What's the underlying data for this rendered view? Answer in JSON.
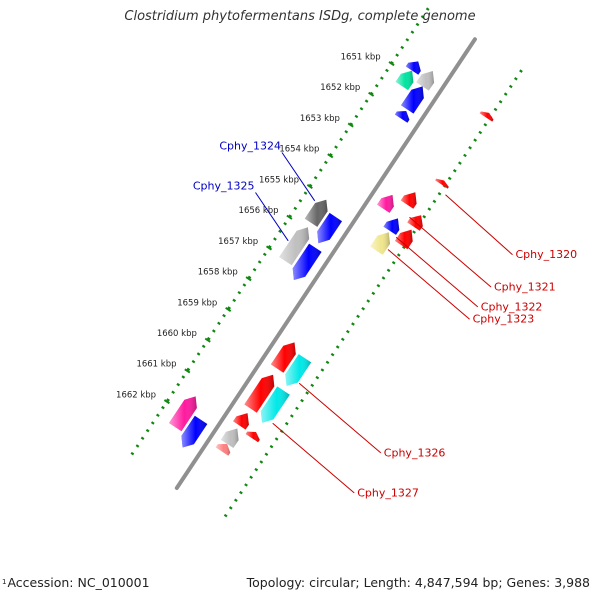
{
  "title": "Clostridium phytofermentans ISDg, complete genome",
  "footer": {
    "start_marker": "1",
    "accession": "Accession: NC_010001",
    "summary": "Topology: circular; Length: 4,847,594 bp; Genes: 3,988"
  },
  "colors": {
    "red": "#ff0000",
    "blue": "#0000ff",
    "cyan": "#00e8e8",
    "green": "#00e4a0",
    "magenta": "#ff1aa0",
    "gray": "#bfbfbf",
    "darkgray": "#666666",
    "yellow": "#f0e68c",
    "pink": "#ff8080",
    "label_blue": "#0000c0",
    "label_red": "#cc0000",
    "tick_green": "#118811",
    "backbone": "#909090"
  },
  "ticks": [
    {
      "label": "1651 kbp",
      "kbp": 1651
    },
    {
      "label": "1652 kbp",
      "kbp": 1652
    },
    {
      "label": "1653 kbp",
      "kbp": 1653
    },
    {
      "label": "1654 kbp",
      "kbp": 1654
    },
    {
      "label": "1655 kbp",
      "kbp": 1655
    },
    {
      "label": "1656 kbp",
      "kbp": 1656
    },
    {
      "label": "1657 kbp",
      "kbp": 1657
    },
    {
      "label": "1658 kbp",
      "kbp": 1658
    },
    {
      "label": "1659 kbp",
      "kbp": 1659
    },
    {
      "label": "1660 kbp",
      "kbp": 1660
    },
    {
      "label": "1661 kbp",
      "kbp": 1661
    },
    {
      "label": "1662 kbp",
      "kbp": 1662
    }
  ],
  "features": [
    {
      "lane": 2,
      "start": 1650.55,
      "end": 1650.85,
      "color": "blue",
      "strand": "-"
    },
    {
      "lane": 2,
      "start": 1650.85,
      "end": 1651.35,
      "color": "green",
      "strand": "-"
    },
    {
      "lane": 1,
      "start": 1650.55,
      "end": 1651.05,
      "color": "gray",
      "strand": "-"
    },
    {
      "lane": 1,
      "start": 1651.05,
      "end": 1651.8,
      "color": "blue",
      "strand": "-"
    },
    {
      "lane": 1,
      "start": 1651.85,
      "end": 1652.1,
      "color": "blue",
      "strand": "-"
    },
    {
      "lane": -3,
      "start": 1650.65,
      "end": 1650.8,
      "color": "red",
      "strand": "-"
    },
    {
      "lane": -3,
      "start": 1652.85,
      "end": 1652.98,
      "color": "red",
      "strand": "-"
    },
    {
      "lane": -2,
      "start": 1653.55,
      "end": 1653.95,
      "color": "red",
      "strand": "-"
    },
    {
      "lane": -3,
      "start": 1653.98,
      "end": 1654.35,
      "color": "red",
      "strand": "-"
    },
    {
      "lane": -3,
      "start": 1654.45,
      "end": 1654.95,
      "color": "red",
      "strand": "-"
    },
    {
      "lane": -1,
      "start": 1653.95,
      "end": 1654.4,
      "color": "magenta",
      "strand": "-"
    },
    {
      "lane": -2,
      "start": 1654.4,
      "end": 1654.8,
      "color": "blue",
      "strand": "-"
    },
    {
      "lane": -2,
      "start": 1654.85,
      "end": 1655.45,
      "color": "yellow",
      "strand": "-"
    },
    {
      "lane": 2,
      "start": 1655.05,
      "end": 1655.8,
      "color": "darkgray",
      "strand": "-"
    },
    {
      "lane": 1,
      "start": 1655.3,
      "end": 1656.15,
      "color": "blue",
      "strand": "+"
    },
    {
      "lane": 2,
      "start": 1655.95,
      "end": 1657.05,
      "color": "gray",
      "strand": "-"
    },
    {
      "lane": 1,
      "start": 1656.3,
      "end": 1657.35,
      "color": "blue",
      "strand": "+"
    },
    {
      "lane": -1,
      "start": 1658.75,
      "end": 1659.6,
      "color": "red",
      "strand": "-"
    },
    {
      "lane": -2,
      "start": 1658.95,
      "end": 1659.85,
      "color": "cyan",
      "strand": "+"
    },
    {
      "lane": -1,
      "start": 1659.8,
      "end": 1660.9,
      "color": "red",
      "strand": "-"
    },
    {
      "lane": -2,
      "start": 1660.0,
      "end": 1661.05,
      "color": "cyan",
      "strand": "+"
    },
    {
      "lane": -1,
      "start": 1661.05,
      "end": 1661.45,
      "color": "red",
      "strand": "-"
    },
    {
      "lane": -1,
      "start": 1661.55,
      "end": 1662.05,
      "color": "gray",
      "strand": "-"
    },
    {
      "lane": -2,
      "start": 1661.35,
      "end": 1661.55,
      "color": "red",
      "strand": "-"
    },
    {
      "lane": -1,
      "start": 1662.05,
      "end": 1662.3,
      "color": "pink",
      "strand": "-"
    },
    {
      "lane": 2,
      "start": 1661.45,
      "end": 1662.45,
      "color": "magenta",
      "strand": "-"
    },
    {
      "lane": 1,
      "start": 1661.9,
      "end": 1662.8,
      "color": "blue",
      "strand": "+"
    }
  ],
  "labels": [
    {
      "text": "Cphy_1320",
      "side": "right",
      "color": "label_red",
      "kbp": 1653.15,
      "lane": -3
    },
    {
      "text": "Cphy_1321",
      "side": "right",
      "color": "label_red",
      "kbp": 1654.2,
      "lane": -2
    },
    {
      "text": "Cphy_1322",
      "side": "right",
      "color": "label_red",
      "kbp": 1654.85,
      "lane": -2
    },
    {
      "text": "Cphy_1323",
      "side": "right",
      "color": "label_red",
      "kbp": 1655.25,
      "lane": -2
    },
    {
      "text": "Cphy_1324",
      "side": "left",
      "color": "label_blue",
      "kbp": 1655.25,
      "lane": 2
    },
    {
      "text": "Cphy_1325",
      "side": "left",
      "color": "label_blue",
      "kbp": 1656.55,
      "lane": 2
    },
    {
      "text": "Cphy_1326",
      "side": "right",
      "color": "label_red",
      "kbp": 1659.6,
      "lane": -2
    },
    {
      "text": "Cphy_1327",
      "side": "right",
      "color": "label_red",
      "kbp": 1660.9,
      "lane": -2
    }
  ]
}
